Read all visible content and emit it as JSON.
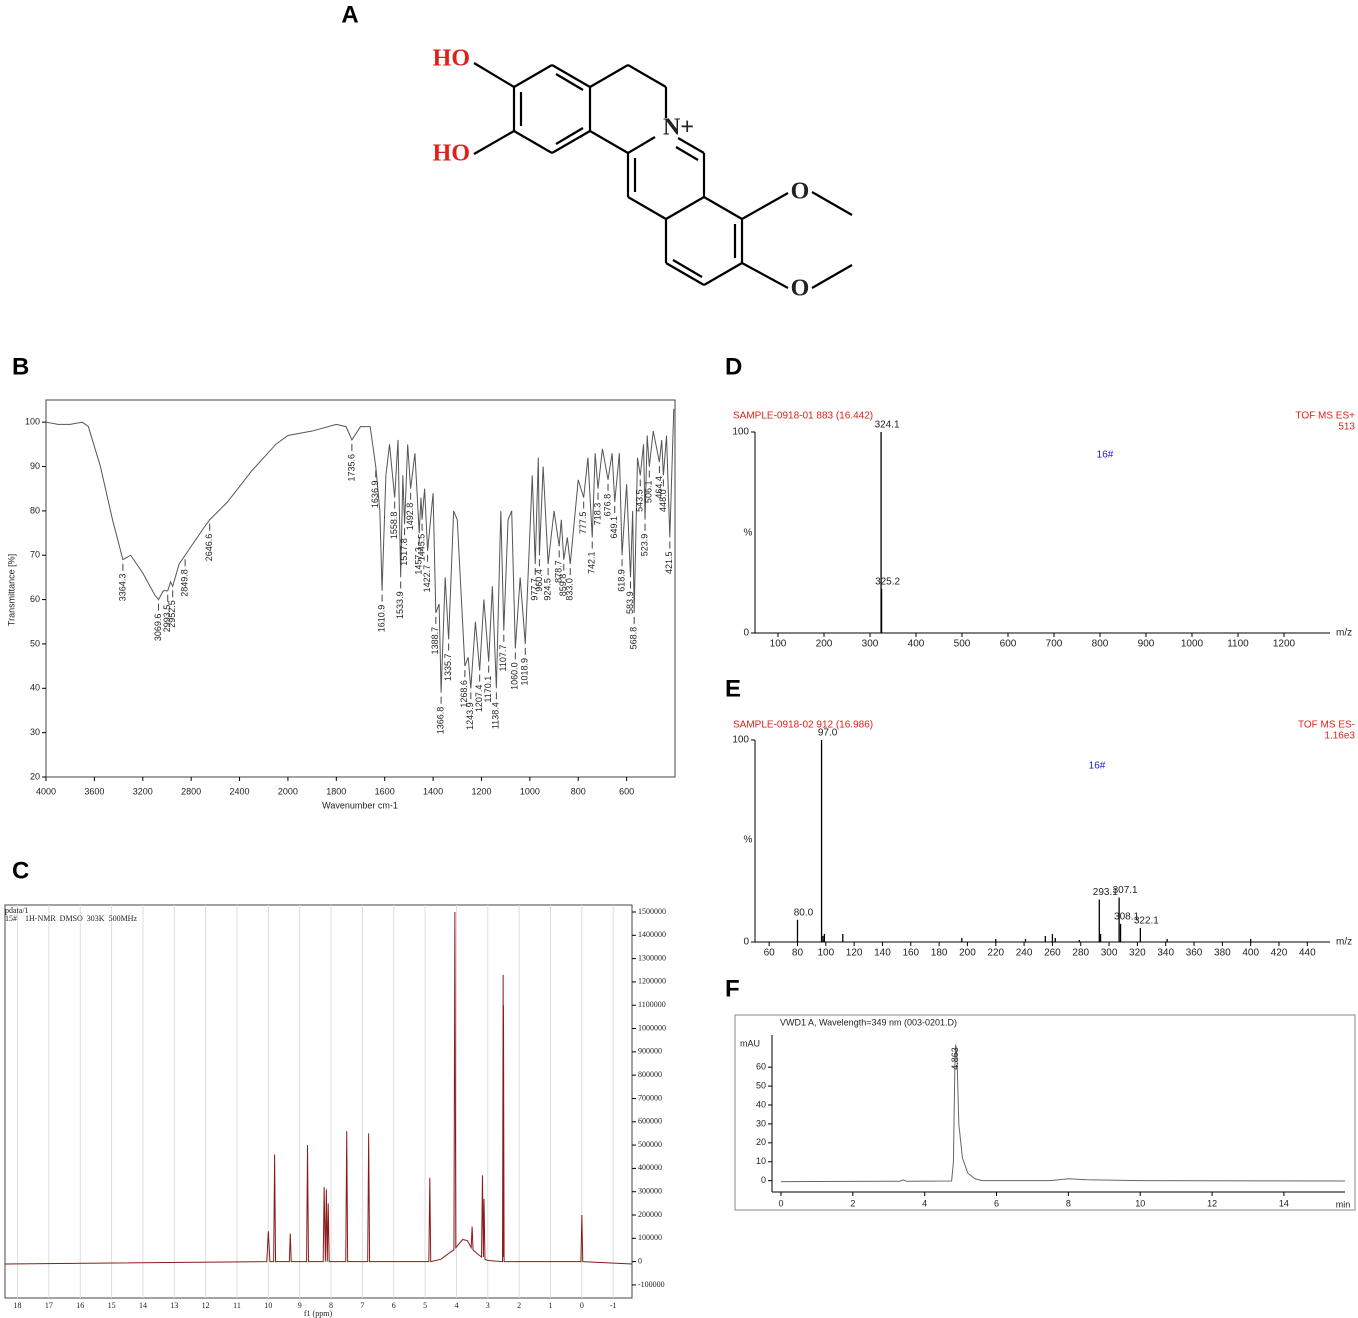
{
  "structure": {
    "panel": "A",
    "labels": [
      "HO",
      "HO",
      "N+",
      "O",
      "O"
    ]
  },
  "chart_data": [
    {
      "panel": "B",
      "type": "line",
      "x_label": "Wavenumber cm-1",
      "y_label": "Transmittance [%]",
      "xlim": [
        4000,
        400
      ],
      "xticks": [
        4000,
        3600,
        3200,
        2800,
        2400,
        2000,
        1800,
        1600,
        1400,
        1200,
        1000,
        800,
        600
      ],
      "ylim": [
        20,
        105
      ],
      "yticks": [
        20,
        30,
        40,
        50,
        60,
        70,
        80,
        90,
        100
      ],
      "grid": false,
      "series": [
        {
          "color": "#555555",
          "x": [
            4000,
            3900,
            3800,
            3700,
            3650,
            3550,
            3450,
            3364.3,
            3300,
            3200,
            3100,
            3069.6,
            3030,
            2993.5,
            2970,
            2952.5,
            2900,
            2849.8,
            2800,
            2700,
            2646.6,
            2500,
            2300,
            2100,
            2000,
            1900,
            1800,
            1760,
            1735.6,
            1700,
            1660,
            1636.9,
            1620,
            1610.9,
            1595,
            1580,
            1558.8,
            1545,
            1533.9,
            1525,
            1517.8,
            1505,
            1492.8,
            1475,
            1457.3,
            1450,
            1445.5,
            1435,
            1422.7,
            1400,
            1388.7,
            1375,
            1366.8,
            1350,
            1335.7,
            1315,
            1300,
            1268.6,
            1255,
            1243.9,
            1225,
            1207.4,
            1190,
            1170.1,
            1155,
            1138.4,
            1120,
            1107.7,
            1090,
            1075,
            1060.0,
            1040,
            1018.9,
            1000,
            990,
            977.7,
            965,
            960.4,
            945,
            924.5,
            900,
            878.7,
            870,
            859.8,
            845,
            833.0,
            800,
            777.5,
            760,
            742.1,
            730,
            718.3,
            700,
            676.8,
            660,
            649.1,
            630,
            618.9,
            600,
            583.9,
            575,
            568.8,
            555,
            543.5,
            530,
            523.9,
            515,
            506.1,
            490,
            464.4,
            455,
            448.0,
            435,
            421.5,
            405
          ],
          "values": [
            100,
            99.5,
            99.5,
            100,
            99,
            90,
            78,
            69,
            70,
            66,
            61,
            60,
            62,
            62,
            64,
            63,
            68,
            70,
            72,
            76,
            78,
            82,
            89,
            95,
            97,
            98,
            99.5,
            99,
            96,
            99,
            99,
            90,
            80,
            62,
            88,
            95,
            83,
            96,
            65,
            88,
            77,
            95,
            85,
            93,
            75,
            83,
            78,
            85,
            71,
            84,
            57,
            59,
            39,
            65,
            51,
            80,
            78,
            45,
            47,
            40,
            55,
            44,
            60,
            46,
            63,
            40,
            80,
            53,
            78,
            80,
            49,
            65,
            50,
            75,
            88,
            68,
            92,
            70,
            90,
            68,
            80,
            72,
            78,
            69,
            74,
            68,
            87,
            83,
            92,
            74,
            93,
            85,
            94,
            87,
            93,
            82,
            93,
            70,
            86,
            65,
            80,
            57,
            92,
            88,
            95,
            78,
            97,
            90,
            98,
            91,
            96,
            88,
            97,
            74,
            103
          ]
        }
      ],
      "peaks": {
        "values": [
          3364.3,
          3069.6,
          2993.5,
          2952.5,
          2849.8,
          2646.6,
          1735.6,
          1636.9,
          1610.9,
          1558.8,
          1533.9,
          1517.8,
          1492.8,
          1457.3,
          1445.5,
          1422.7,
          1388.7,
          1366.8,
          1335.7,
          1268.6,
          1243.9,
          1207.4,
          1170.1,
          1138.4,
          1107.7,
          1060.0,
          1018.9,
          977.7,
          960.4,
          924.5,
          878.7,
          859.8,
          833.0,
          777.5,
          742.1,
          718.3,
          676.8,
          649.1,
          618.9,
          583.9,
          568.8,
          543.5,
          523.9,
          506.1,
          464.4,
          448.0,
          421.5
        ],
        "value_labels": [
          "3364.3",
          "3069.6",
          "2993.5",
          "2952.5",
          "2849.8",
          "2646.6",
          "1735.6",
          "1636.9",
          "1610.9",
          "1558.8",
          "1533.9",
          "1517.8",
          "1492.8",
          "1457.3",
          "1445.5",
          "1422.7",
          "1388.7",
          "1366.8",
          "1335.7",
          "1268.6",
          "1243.9",
          "1207.4",
          "1170.1",
          "1138.4",
          "1107.7",
          "1060.0",
          "1018.9",
          "977.7",
          "960.4",
          "924.5",
          "878.7",
          "859.8",
          "833.0",
          "777.5",
          "742.1",
          "718.3",
          "676.8",
          "649.1",
          "618.9",
          "583.9",
          "568.8",
          "543.5",
          "523.9",
          "506.1",
          "464.4",
          "448.0",
          "421.5"
        ]
      }
    },
    {
      "panel": "C",
      "type": "line",
      "title": "pdata/1",
      "subtitle": "15#    1H-NMR  DMSO  303K  500MHz",
      "x_label": "f1 (ppm)",
      "xlim": [
        18.4,
        -1.6
      ],
      "xticks": [
        18,
        17,
        16,
        15,
        14,
        13,
        12,
        11,
        10,
        9,
        8,
        7,
        6,
        5,
        4,
        3,
        2,
        1,
        0,
        -1
      ],
      "ylim": [
        -156000,
        1530000
      ],
      "yticks": [
        1500000,
        1400000,
        1300000,
        1200000,
        1100000,
        1000000,
        900000,
        800000,
        700000,
        600000,
        500000,
        400000,
        300000,
        200000,
        100000,
        0,
        -100000
      ],
      "grid": true,
      "y_axis_side": "right",
      "series": [
        {
          "color": "#8b1a1a",
          "x": [
            18.4,
            10.05,
            10.0,
            9.95,
            9.83,
            9.8,
            9.77,
            9.33,
            9.3,
            9.27,
            8.78,
            8.75,
            8.72,
            8.25,
            8.22,
            8.18,
            8.15,
            8.12,
            8.09,
            8.06,
            7.53,
            7.5,
            7.47,
            6.83,
            6.8,
            6.77,
            4.88,
            4.85,
            4.82,
            4.5,
            4.2,
            4.08,
            4.05,
            4.02,
            3.8,
            3.65,
            3.53,
            3.5,
            3.47,
            3.3,
            3.2,
            3.17,
            3.14,
            3.12,
            3.09,
            3.0,
            2.53,
            2.51,
            2.505,
            2.5,
            2.48,
            0.03,
            0.0,
            -0.03,
            -1.6
          ],
          "values": [
            -10000,
            0,
            130000,
            0,
            0,
            460000,
            0,
            0,
            120000,
            0,
            0,
            500000,
            0,
            0,
            320000,
            0,
            310000,
            0,
            250000,
            0,
            0,
            560000,
            0,
            0,
            550000,
            0,
            0,
            360000,
            0,
            10000,
            40000,
            50000,
            1500000,
            60000,
            95000,
            90000,
            60000,
            150000,
            50000,
            30000,
            20000,
            370000,
            20000,
            270000,
            10000,
            5000,
            0,
            1230000,
            20000,
            1100000,
            0,
            0,
            200000,
            0,
            -10000
          ]
        }
      ]
    },
    {
      "panel": "D",
      "type": "bar",
      "title": "SAMPLE-0918-01 883 (16.442)",
      "mode": "TOF MS ES+",
      "intensity": "513",
      "annotation": "16#",
      "x_label": "m/z",
      "y_label": "%",
      "xlim": [
        50,
        1300
      ],
      "xticks": [
        100,
        200,
        300,
        400,
        500,
        600,
        700,
        800,
        900,
        1000,
        1100,
        1200
      ],
      "ylim": [
        0,
        100
      ],
      "yticks": [
        0,
        100
      ],
      "series": [
        {
          "color": "#000000",
          "x": [
            324.1,
            325.2
          ],
          "values": [
            100,
            22
          ],
          "x_labels": [
            "324.1",
            "325.2"
          ]
        }
      ]
    },
    {
      "panel": "E",
      "type": "bar",
      "title": "SAMPLE-0918-02 912 (16.986)",
      "mode": "TOF MS ES-",
      "intensity": "1.16e3",
      "annotation": "16#",
      "x_label": "m/z",
      "y_label": "%",
      "xlim": [
        50,
        456
      ],
      "xticks": [
        60,
        80,
        100,
        120,
        140,
        160,
        180,
        200,
        220,
        240,
        260,
        280,
        300,
        320,
        340,
        360,
        380,
        400,
        420,
        440
      ],
      "ylim": [
        0,
        100
      ],
      "yticks": [
        0,
        100
      ],
      "series": [
        {
          "color": "#000000",
          "x": [
            80.0,
            97.0,
            98,
            99,
            112,
            196,
            220,
            241,
            255,
            260,
            262,
            279,
            293.1,
            294,
            307.1,
            308.1,
            322.1,
            341,
            400
          ],
          "values": [
            11,
            100,
            3,
            4,
            4,
            2,
            1.5,
            1.5,
            3,
            4,
            2,
            1,
            21,
            4,
            22,
            9,
            7,
            1.5,
            1.5
          ],
          "x_labels": [
            "80.0",
            "97.0",
            null,
            null,
            null,
            null,
            null,
            null,
            null,
            null,
            null,
            null,
            "293.1",
            null,
            "307.1",
            "308.1",
            "322.1",
            null,
            null
          ]
        }
      ]
    },
    {
      "panel": "F",
      "type": "line",
      "title": "VWD1 A, Wavelength=349 nm (003-0201.D)",
      "x_label": "min",
      "y_label": "mAU",
      "xlim": [
        -0.25,
        15.7
      ],
      "xticks": [
        0,
        2,
        4,
        6,
        8,
        10,
        12,
        14
      ],
      "ylim": [
        -6,
        77
      ],
      "yticks": [
        0,
        10,
        20,
        30,
        40,
        50,
        60
      ],
      "series": [
        {
          "color": "#666666",
          "x": [
            0,
            3.3,
            3.4,
            3.5,
            4.75,
            4.8,
            4.84,
            4.863,
            4.9,
            4.95,
            5.05,
            5.2,
            5.4,
            5.6,
            7.5,
            8.0,
            8.5,
            10,
            15.7
          ],
          "values": [
            -0.5,
            -0.3,
            0.3,
            -0.3,
            -0.2,
            10,
            60,
            72,
            65,
            30,
            12,
            4,
            1,
            0,
            0,
            1,
            0.5,
            0,
            -0.2
          ]
        }
      ],
      "peaks": {
        "values": [
          4.863
        ]
      }
    }
  ]
}
